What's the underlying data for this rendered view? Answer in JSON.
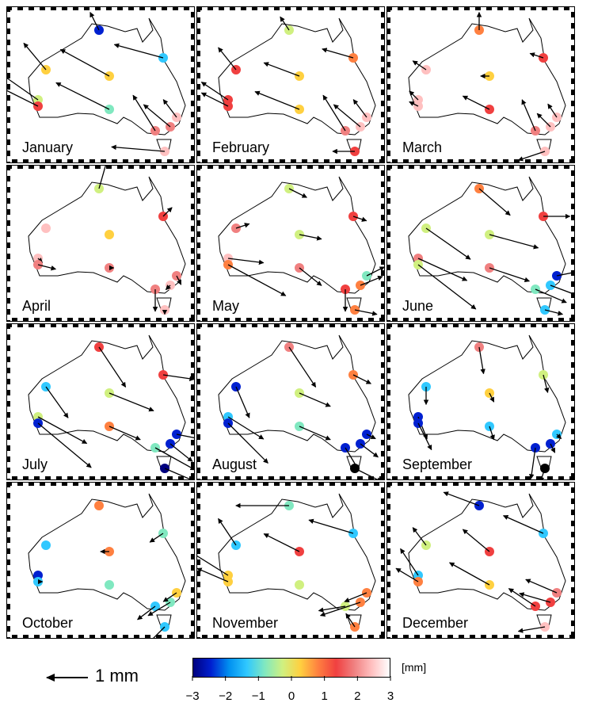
{
  "scale": {
    "arrow_value_mm": 1,
    "label": "1 mm"
  },
  "colorbar": {
    "unit": "[mm]",
    "min": -3,
    "max": 3,
    "ticks": [
      "−3",
      "−2",
      "−1",
      "0",
      "1",
      "2",
      "3"
    ],
    "stops": [
      "#00007f",
      "#0020d0",
      "#0090f0",
      "#30c8ff",
      "#80e8c0",
      "#d0f080",
      "#ffd040",
      "#ff8040",
      "#f04040",
      "#f08080",
      "#ffc0c0",
      "#ffffff"
    ]
  },
  "months": [
    {
      "name": "January",
      "stations": [
        {
          "site": "darwin",
          "value": -2.7,
          "vec": [
            -0.2,
            -0.4
          ]
        },
        {
          "site": "north_west",
          "value": 0.0,
          "vec": [
            -0.5,
            -0.6
          ]
        },
        {
          "site": "alice",
          "value": 0.2,
          "vec": [
            -1.1,
            -0.6
          ]
        },
        {
          "site": "north_east",
          "value": -1.4,
          "vec": [
            -1.1,
            -0.3
          ]
        },
        {
          "site": "perth_n",
          "value": -0.4,
          "vec": [
            -1.0,
            -0.7
          ]
        },
        {
          "site": "perth",
          "value": 1.6,
          "vec": [
            -1.0,
            -0.5
          ]
        },
        {
          "site": "adelaide",
          "value": -1.0,
          "vec": [
            -1.2,
            -0.6
          ]
        },
        {
          "site": "melbourne",
          "value": 1.8,
          "vec": [
            -0.5,
            -0.8
          ]
        },
        {
          "site": "sydney",
          "value": 2.0,
          "vec": [
            -0.6,
            -0.5
          ]
        },
        {
          "site": "brisbane",
          "value": 2.4,
          "vec": [
            -0.3,
            -0.4
          ]
        },
        {
          "site": "hobart",
          "value": 2.5,
          "vec": [
            -1.2,
            -0.1
          ]
        }
      ]
    },
    {
      "name": "February",
      "stations": [
        {
          "site": "darwin",
          "value": -0.4,
          "vec": [
            -0.2,
            -0.3
          ]
        },
        {
          "site": "north_west",
          "value": 1.6,
          "vec": [
            -0.4,
            -0.5
          ]
        },
        {
          "site": "alice",
          "value": 0.2,
          "vec": [
            -0.8,
            -0.3
          ]
        },
        {
          "site": "north_east",
          "value": 0.6,
          "vec": [
            -0.7,
            -0.2
          ]
        },
        {
          "site": "perth_n",
          "value": 1.4,
          "vec": [
            -0.6,
            -0.4
          ]
        },
        {
          "site": "perth",
          "value": 1.2,
          "vec": [
            -0.6,
            -0.3
          ]
        },
        {
          "site": "adelaide",
          "value": 0.1,
          "vec": [
            -1.0,
            -0.4
          ]
        },
        {
          "site": "melbourne",
          "value": 1.8,
          "vec": [
            -0.5,
            -0.8
          ]
        },
        {
          "site": "sydney",
          "value": 2.2,
          "vec": [
            -0.6,
            -0.5
          ]
        },
        {
          "site": "brisbane",
          "value": 2.4,
          "vec": [
            -0.3,
            -0.4
          ]
        },
        {
          "site": "hobart",
          "value": 1.6,
          "vec": [
            -0.5,
            0.0
          ]
        }
      ]
    },
    {
      "name": "March",
      "stations": [
        {
          "site": "darwin",
          "value": 0.8,
          "vec": [
            0.0,
            -0.4
          ]
        },
        {
          "site": "north_west",
          "value": 2.5,
          "vec": [
            -0.3,
            -0.2
          ]
        },
        {
          "site": "alice",
          "value": 0.4,
          "vec": [
            -0.2,
            0.0
          ]
        },
        {
          "site": "north_east",
          "value": 1.6,
          "vec": [
            -0.3,
            -0.1
          ]
        },
        {
          "site": "perth_n",
          "value": 2.6,
          "vec": [
            -0.2,
            -0.2
          ]
        },
        {
          "site": "perth",
          "value": 2.5,
          "vec": [
            -0.2,
            -0.1
          ]
        },
        {
          "site": "adelaide",
          "value": 1.2,
          "vec": [
            -0.6,
            -0.3
          ]
        },
        {
          "site": "melbourne",
          "value": 2.0,
          "vec": [
            -0.3,
            -0.7
          ]
        },
        {
          "site": "sydney",
          "value": 2.6,
          "vec": [
            -0.3,
            -0.3
          ]
        },
        {
          "site": "brisbane",
          "value": 2.7,
          "vec": [
            -0.2,
            -0.3
          ]
        },
        {
          "site": "hobart",
          "value": 2.4,
          "vec": [
            -0.6,
            0.2
          ]
        }
      ]
    },
    {
      "name": "April",
      "stations": [
        {
          "site": "darwin",
          "value": -0.2,
          "vec": [
            0.2,
            -0.7
          ]
        },
        {
          "site": "north_west",
          "value": 2.6,
          "vec": [
            0.0,
            0.0
          ]
        },
        {
          "site": "alice",
          "value": 0.4,
          "vec": [
            0.0,
            0.0
          ]
        },
        {
          "site": "north_east",
          "value": 1.2,
          "vec": [
            0.2,
            -0.2
          ]
        },
        {
          "site": "perth_n",
          "value": 2.6,
          "vec": [
            0.1,
            0.1
          ]
        },
        {
          "site": "perth",
          "value": 1.8,
          "vec": [
            0.4,
            0.1
          ]
        },
        {
          "site": "adelaide",
          "value": 1.8,
          "vec": [
            0.1,
            0.0
          ]
        },
        {
          "site": "melbourne",
          "value": 2.0,
          "vec": [
            0.0,
            0.5
          ]
        },
        {
          "site": "sydney",
          "value": 2.2,
          "vec": [
            -0.1,
            0.1
          ]
        },
        {
          "site": "brisbane",
          "value": 1.8,
          "vec": [
            0.1,
            0.2
          ]
        },
        {
          "site": "hobart",
          "value": 2.4,
          "vec": [
            0.0,
            0.1
          ]
        }
      ]
    },
    {
      "name": "May",
      "stations": [
        {
          "site": "darwin",
          "value": -0.5,
          "vec": [
            0.4,
            0.2
          ]
        },
        {
          "site": "north_west",
          "value": 1.8,
          "vec": [
            0.3,
            -0.1
          ]
        },
        {
          "site": "alice",
          "value": -0.4,
          "vec": [
            0.5,
            0.1
          ]
        },
        {
          "site": "north_east",
          "value": 1.2,
          "vec": [
            0.3,
            0.1
          ]
        },
        {
          "site": "perth_n",
          "value": 2.6,
          "vec": [
            0.8,
            0.1
          ]
        },
        {
          "site": "perth",
          "value": 0.6,
          "vec": [
            1.3,
            0.7
          ]
        },
        {
          "site": "adelaide",
          "value": 1.8,
          "vec": [
            0.5,
            0.4
          ]
        },
        {
          "site": "melbourne",
          "value": 1.2,
          "vec": [
            0.0,
            0.5
          ]
        },
        {
          "site": "sydney",
          "value": 0.6,
          "vec": [
            0.5,
            -0.2
          ]
        },
        {
          "site": "brisbane",
          "value": -0.6,
          "vec": [
            0.4,
            -0.2
          ]
        },
        {
          "site": "hobart",
          "value": 0.6,
          "vec": [
            0.5,
            0.1
          ]
        }
      ]
    },
    {
      "name": "June",
      "stations": [
        {
          "site": "darwin",
          "value": 0.8,
          "vec": [
            0.7,
            0.6
          ]
        },
        {
          "site": "north_west",
          "value": -0.5,
          "vec": [
            1.0,
            0.7
          ]
        },
        {
          "site": "alice",
          "value": -0.5,
          "vec": [
            1.1,
            0.3
          ]
        },
        {
          "site": "north_east",
          "value": 1.2,
          "vec": [
            0.6,
            0.0
          ]
        },
        {
          "site": "perth_n",
          "value": 2.0,
          "vec": [
            1.1,
            0.5
          ]
        },
        {
          "site": "perth",
          "value": -0.4,
          "vec": [
            1.3,
            1.0
          ]
        },
        {
          "site": "adelaide",
          "value": 1.8,
          "vec": [
            0.9,
            0.3
          ]
        },
        {
          "site": "melbourne",
          "value": -1.0,
          "vec": [
            0.7,
            0.3
          ]
        },
        {
          "site": "sydney",
          "value": -1.6,
          "vec": [
            0.8,
            0.3
          ]
        },
        {
          "site": "brisbane",
          "value": -2.4,
          "vec": [
            0.5,
            -0.1
          ]
        },
        {
          "site": "hobart",
          "value": -1.6,
          "vec": [
            0.4,
            0.1
          ]
        }
      ]
    },
    {
      "name": "July",
      "stations": [
        {
          "site": "darwin",
          "value": 1.4,
          "vec": [
            0.6,
            0.9
          ]
        },
        {
          "site": "north_west",
          "value": -1.6,
          "vec": [
            0.5,
            0.7
          ]
        },
        {
          "site": "alice",
          "value": -0.4,
          "vec": [
            1.0,
            0.4
          ]
        },
        {
          "site": "north_east",
          "value": 1.2,
          "vec": [
            0.7,
            0.1
          ]
        },
        {
          "site": "perth_n",
          "value": -0.4,
          "vec": [
            1.1,
            0.6
          ]
        },
        {
          "site": "perth",
          "value": -2.2,
          "vec": [
            1.2,
            1.0
          ]
        },
        {
          "site": "adelaide",
          "value": 0.6,
          "vec": [
            0.7,
            0.3
          ]
        },
        {
          "site": "melbourne",
          "value": -1.0,
          "vec": [
            0.9,
            0.5
          ]
        },
        {
          "site": "sydney",
          "value": -2.2,
          "vec": [
            0.5,
            0.4
          ]
        },
        {
          "site": "brisbane",
          "value": -2.2,
          "vec": [
            0.5,
            0.1
          ]
        },
        {
          "site": "hobart",
          "value": -3.0,
          "vec": [
            0.7,
            0.3
          ]
        }
      ]
    },
    {
      "name": "August",
      "stations": [
        {
          "site": "darwin",
          "value": 1.8,
          "vec": [
            0.6,
            0.9
          ]
        },
        {
          "site": "north_west",
          "value": -2.4,
          "vec": [
            0.3,
            0.7
          ]
        },
        {
          "site": "alice",
          "value": -0.2,
          "vec": [
            0.7,
            0.3
          ]
        },
        {
          "site": "north_east",
          "value": 0.8,
          "vec": [
            0.4,
            0.2
          ]
        },
        {
          "site": "perth_n",
          "value": -1.6,
          "vec": [
            0.8,
            0.5
          ]
        },
        {
          "site": "perth",
          "value": -2.6,
          "vec": [
            0.9,
            0.9
          ]
        },
        {
          "site": "adelaide",
          "value": -0.6,
          "vec": [
            0.7,
            0.3
          ]
        },
        {
          "site": "melbourne",
          "value": -2.4,
          "vec": [
            0.3,
            0.5
          ]
        },
        {
          "site": "sydney",
          "value": -2.4,
          "vec": [
            0.4,
            0.3
          ]
        },
        {
          "site": "brisbane",
          "value": -2.4,
          "vec": [
            0.2,
            0.1
          ]
        },
        {
          "site": "hobart",
          "value": -3.5,
          "vec": [
            0.6,
            0.3
          ]
        }
      ]
    },
    {
      "name": "September",
      "stations": [
        {
          "site": "darwin",
          "value": 1.8,
          "vec": [
            0.1,
            0.6
          ]
        },
        {
          "site": "north_west",
          "value": -1.6,
          "vec": [
            0.0,
            0.4
          ]
        },
        {
          "site": "alice",
          "value": 0.4,
          "vec": [
            0.1,
            0.2
          ]
        },
        {
          "site": "north_east",
          "value": -0.2,
          "vec": [
            0.1,
            0.4
          ]
        },
        {
          "site": "perth_n",
          "value": -2.4,
          "vec": [
            0.2,
            0.5
          ]
        },
        {
          "site": "perth",
          "value": -2.6,
          "vec": [
            0.3,
            0.6
          ]
        },
        {
          "site": "adelaide",
          "value": -1.4,
          "vec": [
            0.1,
            0.3
          ]
        },
        {
          "site": "melbourne",
          "value": -2.6,
          "vec": [
            -0.1,
            0.7
          ]
        },
        {
          "site": "sydney",
          "value": -2.4,
          "vec": [
            0.1,
            0.2
          ]
        },
        {
          "site": "brisbane",
          "value": -1.6,
          "vec": [
            0.1,
            0.1
          ]
        },
        {
          "site": "hobart",
          "value": -3.5,
          "vec": [
            -0.1,
            0.3
          ]
        }
      ]
    },
    {
      "name": "October",
      "stations": [
        {
          "site": "darwin",
          "value": 1.0,
          "vec": [
            0.0,
            0.0
          ]
        },
        {
          "site": "north_west",
          "value": -1.4,
          "vec": [
            0.0,
            0.0
          ]
        },
        {
          "site": "alice",
          "value": 1.0,
          "vec": [
            -0.2,
            0.0
          ]
        },
        {
          "site": "north_east",
          "value": -0.6,
          "vec": [
            -0.3,
            0.2
          ]
        },
        {
          "site": "perth_n",
          "value": -2.6,
          "vec": [
            0.0,
            0.0
          ]
        },
        {
          "site": "perth",
          "value": -1.6,
          "vec": [
            0.1,
            0.0
          ]
        },
        {
          "site": "adelaide",
          "value": -1.0,
          "vec": [
            0.0,
            0.0
          ]
        },
        {
          "site": "melbourne",
          "value": -1.4,
          "vec": [
            -0.4,
            0.3
          ]
        },
        {
          "site": "sydney",
          "value": -0.6,
          "vec": [
            -0.5,
            0.3
          ]
        },
        {
          "site": "brisbane",
          "value": 0.0,
          "vec": [
            -0.3,
            0.2
          ]
        },
        {
          "site": "hobart",
          "value": -1.6,
          "vec": [
            -0.5,
            0.5
          ]
        }
      ]
    },
    {
      "name": "November",
      "stations": [
        {
          "site": "darwin",
          "value": -0.6,
          "vec": [
            -1.2,
            0.0
          ]
        },
        {
          "site": "north_west",
          "value": -1.2,
          "vec": [
            -0.4,
            -0.6
          ]
        },
        {
          "site": "alice",
          "value": 1.2,
          "vec": [
            -0.8,
            -0.4
          ]
        },
        {
          "site": "north_east",
          "value": -1.4,
          "vec": [
            -1.0,
            -0.3
          ]
        },
        {
          "site": "perth_n",
          "value": 0.0,
          "vec": [
            -0.8,
            -0.5
          ]
        },
        {
          "site": "perth",
          "value": 0.4,
          "vec": [
            -0.7,
            -0.3
          ]
        },
        {
          "site": "adelaide",
          "value": -0.2,
          "vec": [
            0.0,
            0.0
          ]
        },
        {
          "site": "melbourne",
          "value": -0.2,
          "vec": [
            -0.6,
            0.1
          ]
        },
        {
          "site": "sydney",
          "value": 0.6,
          "vec": [
            -0.9,
            0.3
          ]
        },
        {
          "site": "brisbane",
          "value": 0.8,
          "vec": [
            -0.5,
            0.2
          ]
        },
        {
          "site": "hobart",
          "value": 0.6,
          "vec": [
            -0.2,
            -0.3
          ]
        }
      ]
    },
    {
      "name": "December",
      "stations": [
        {
          "site": "darwin",
          "value": -2.5,
          "vec": [
            -0.8,
            -0.3
          ]
        },
        {
          "site": "north_west",
          "value": -0.4,
          "vec": [
            -0.3,
            -0.4
          ]
        },
        {
          "site": "alice",
          "value": 1.2,
          "vec": [
            -0.6,
            -0.5
          ]
        },
        {
          "site": "north_east",
          "value": -1.6,
          "vec": [
            -0.9,
            -0.4
          ]
        },
        {
          "site": "perth_n",
          "value": -1.2,
          "vec": [
            -0.4,
            -0.6
          ]
        },
        {
          "site": "perth",
          "value": 0.6,
          "vec": [
            -0.5,
            -0.3
          ]
        },
        {
          "site": "adelaide",
          "value": 0.2,
          "vec": [
            -0.9,
            -0.5
          ]
        },
        {
          "site": "melbourne",
          "value": 1.2,
          "vec": [
            -0.6,
            -0.4
          ]
        },
        {
          "site": "sydney",
          "value": 1.6,
          "vec": [
            -0.7,
            -0.2
          ]
        },
        {
          "site": "brisbane",
          "value": 2.0,
          "vec": [
            -0.7,
            -0.3
          ]
        },
        {
          "site": "hobart",
          "value": 2.6,
          "vec": [
            -0.6,
            0.1
          ]
        }
      ]
    }
  ]
}
